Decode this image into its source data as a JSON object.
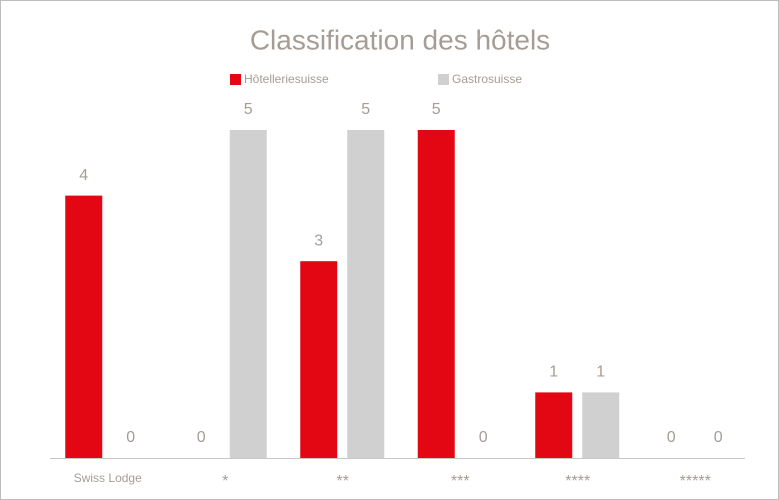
{
  "chart_data": {
    "type": "bar",
    "title": "Classification des hôtels",
    "categories": [
      "Swiss Lodge",
      "*",
      "**",
      "***",
      "****",
      "*****"
    ],
    "series": [
      {
        "name": "Hôtelleriesuisse",
        "color": "#e30613",
        "values": [
          4,
          0,
          3,
          5,
          1,
          0
        ]
      },
      {
        "name": "Gastrosuisse",
        "color": "#d0d0d0",
        "values": [
          0,
          5,
          5,
          0,
          1,
          0
        ]
      }
    ]
  }
}
